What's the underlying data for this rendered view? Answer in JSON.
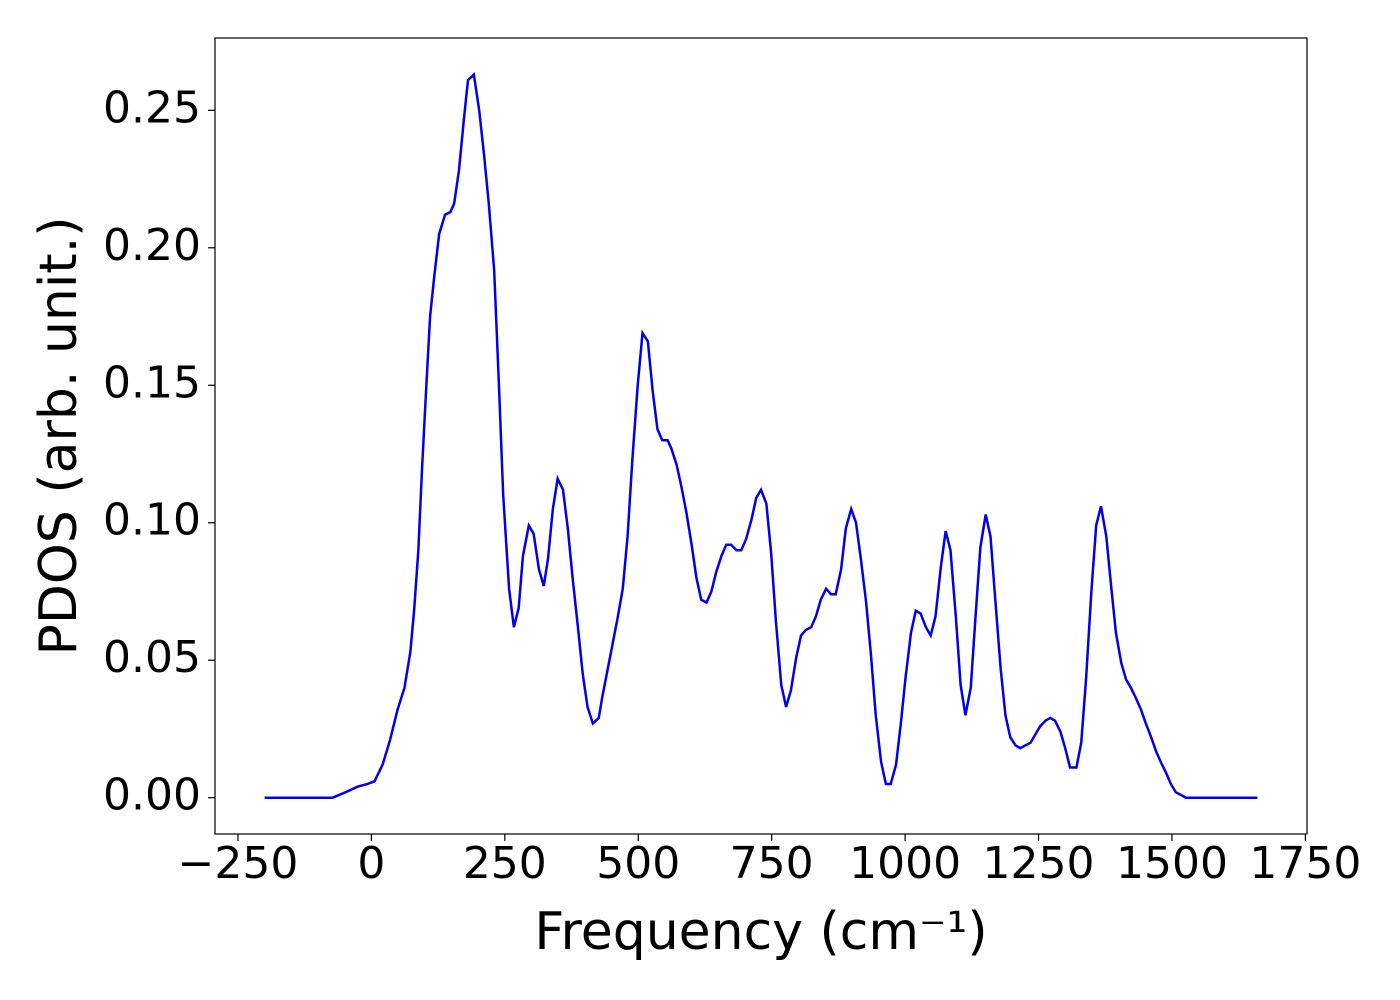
{
  "chart_data": {
    "type": "line",
    "x_label": "Frequency (cm⁻¹)",
    "y_label": "PDOS (arb. unit.)",
    "xlim": [
      -293,
      1753
    ],
    "ylim": [
      -0.0132,
      0.2763
    ],
    "xticks": [
      {
        "value": -250,
        "label": "−250"
      },
      0,
      250,
      500,
      750,
      1000,
      1250,
      1500,
      1750
    ],
    "yticks": [
      {
        "value": 0,
        "label": "0.00"
      },
      {
        "value": 0.05,
        "label": "0.05"
      },
      {
        "value": 0.1,
        "label": "0.10"
      },
      {
        "value": 0.15,
        "label": "0.15"
      },
      {
        "value": 0.2,
        "label": "0.20"
      },
      {
        "value": 0.25,
        "label": "0.25"
      }
    ],
    "x": [
      -200,
      -73,
      -54,
      -26,
      -7,
      6,
      21,
      35,
      49,
      62,
      73,
      80,
      88,
      95,
      103,
      110,
      118,
      127,
      138,
      148,
      155,
      164,
      174,
      181,
      192,
      202,
      211,
      220,
      230,
      239,
      247,
      258,
      267,
      276,
      284,
      295,
      304,
      314,
      323,
      331,
      340,
      349,
      359,
      368,
      377,
      387,
      396,
      405,
      415,
      426,
      433,
      443,
      452,
      461,
      471,
      480,
      489,
      499,
      508,
      518,
      527,
      536,
      545,
      555,
      562,
      572,
      581,
      590,
      600,
      609,
      618,
      628,
      637,
      646,
      656,
      665,
      674,
      684,
      693,
      702,
      712,
      721,
      730,
      740,
      749,
      758,
      768,
      777,
      786,
      796,
      805,
      814,
      824,
      833,
      842,
      852,
      861,
      870,
      880,
      889,
      899,
      908,
      917,
      927,
      936,
      945,
      955,
      964,
      973,
      983,
      992,
      1001,
      1011,
      1020,
      1029,
      1039,
      1048,
      1057,
      1067,
      1076,
      1085,
      1095,
      1104,
      1113,
      1123,
      1132,
      1141,
      1151,
      1160,
      1169,
      1179,
      1188,
      1197,
      1207,
      1216,
      1225,
      1235,
      1244,
      1253,
      1263,
      1272,
      1281,
      1291,
      1300,
      1309,
      1321,
      1330,
      1339,
      1349,
      1358,
      1367,
      1377,
      1386,
      1395,
      1405,
      1414,
      1423,
      1433,
      1442,
      1451,
      1461,
      1470,
      1479,
      1489,
      1498,
      1507,
      1517,
      1526,
      1660
    ],
    "series": [
      {
        "color": "#0000ee",
        "values": [
          0,
          0,
          0.0015,
          0.004,
          0.005,
          0.006,
          0.012,
          0.021,
          0.032,
          0.04,
          0.053,
          0.068,
          0.09,
          0.12,
          0.15,
          0.175,
          0.19,
          0.205,
          0.212,
          0.213,
          0.216,
          0.228,
          0.248,
          0.261,
          0.263,
          0.25,
          0.234,
          0.216,
          0.192,
          0.15,
          0.11,
          0.076,
          0.062,
          0.069,
          0.088,
          0.099,
          0.096,
          0.083,
          0.077,
          0.087,
          0.105,
          0.116,
          0.112,
          0.098,
          0.08,
          0.062,
          0.045,
          0.033,
          0.027,
          0.029,
          0.037,
          0.047,
          0.056,
          0.065,
          0.076,
          0.095,
          0.123,
          0.15,
          0.169,
          0.166,
          0.148,
          0.134,
          0.13,
          0.13,
          0.127,
          0.121,
          0.113,
          0.104,
          0.092,
          0.08,
          0.072,
          0.071,
          0.075,
          0.082,
          0.088,
          0.092,
          0.092,
          0.09,
          0.09,
          0.094,
          0.101,
          0.109,
          0.112,
          0.107,
          0.089,
          0.064,
          0.041,
          0.033,
          0.039,
          0.051,
          0.059,
          0.061,
          0.062,
          0.066,
          0.072,
          0.076,
          0.074,
          0.074,
          0.083,
          0.098,
          0.105,
          0.1,
          0.087,
          0.071,
          0.052,
          0.03,
          0.013,
          0.005,
          0.005,
          0.012,
          0.027,
          0.044,
          0.06,
          0.068,
          0.067,
          0.062,
          0.059,
          0.066,
          0.084,
          0.097,
          0.09,
          0.066,
          0.041,
          0.03,
          0.04,
          0.066,
          0.091,
          0.103,
          0.095,
          0.072,
          0.047,
          0.03,
          0.022,
          0.019,
          0.018,
          0.019,
          0.02,
          0.023,
          0.026,
          0.028,
          0.029,
          0.028,
          0.024,
          0.018,
          0.011,
          0.011,
          0.02,
          0.043,
          0.075,
          0.099,
          0.106,
          0.095,
          0.077,
          0.06,
          0.049,
          0.043,
          0.04,
          0.036,
          0.032,
          0.027,
          0.022,
          0.017,
          0.013,
          0.009,
          0.005,
          0.002,
          0.001,
          0,
          0
        ]
      }
    ]
  }
}
